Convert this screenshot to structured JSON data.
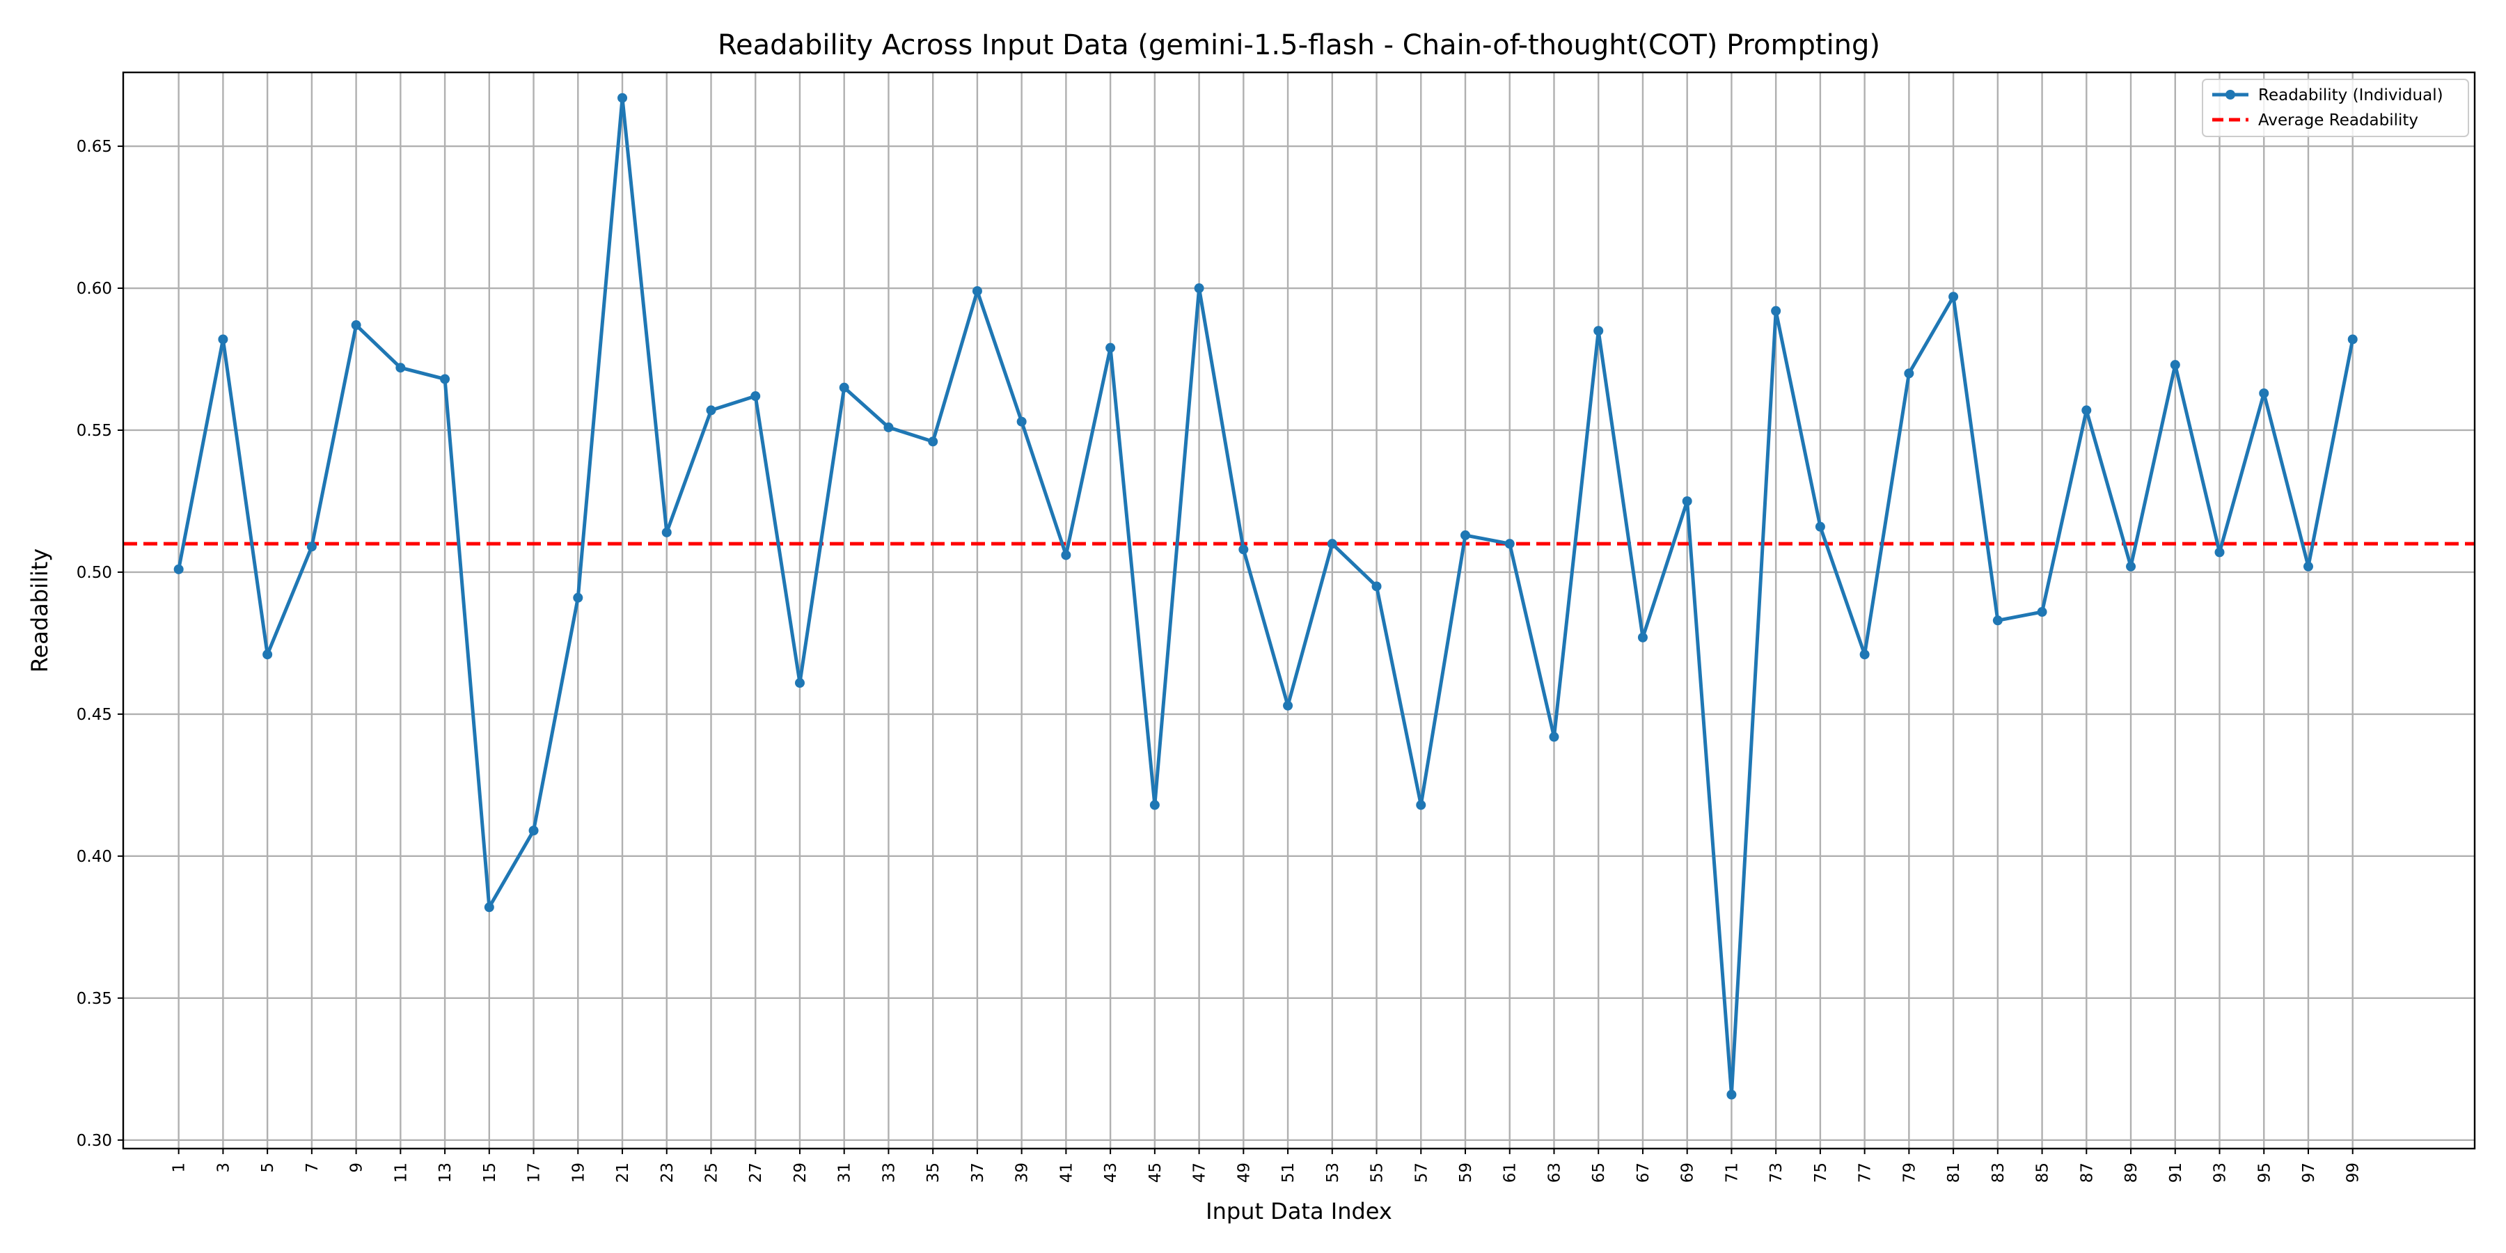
{
  "chart_data": {
    "type": "line",
    "title": "Readability Across Input Data (gemini-1.5-flash - Chain-of-thought(COT) Prompting)",
    "xlabel": "Input Data Index",
    "ylabel": "Readability",
    "ylim": [
      0.297,
      0.676
    ],
    "xlim": [
      -1.5,
      104.5
    ],
    "grid": true,
    "legend_position": "top-right",
    "x_ticks": [
      1,
      3,
      5,
      7,
      9,
      11,
      13,
      15,
      17,
      19,
      21,
      23,
      25,
      27,
      29,
      31,
      33,
      35,
      37,
      39,
      41,
      43,
      45,
      47,
      49,
      51,
      53,
      55,
      57,
      59,
      61,
      63,
      65,
      67,
      69,
      71,
      73,
      75,
      77,
      79,
      81,
      83,
      85,
      87,
      89,
      91,
      93,
      95,
      97,
      99
    ],
    "y_ticks": [
      0.3,
      0.35,
      0.4,
      0.45,
      0.5,
      0.55,
      0.6,
      0.65
    ],
    "y_tick_labels": [
      "0.30",
      "0.35",
      "0.40",
      "0.45",
      "0.50",
      "0.55",
      "0.60",
      "0.65"
    ],
    "series": [
      {
        "name": "Readability (Individual)",
        "color": "#1f77b4",
        "style": "solid-marker",
        "x": [
          1,
          3,
          5,
          7,
          9,
          11,
          13,
          15,
          17,
          19,
          21,
          23,
          25,
          27,
          29,
          31,
          33,
          35,
          37,
          39,
          41,
          43,
          45,
          47,
          49,
          51,
          53,
          55,
          57,
          59,
          61,
          63,
          65,
          67,
          69,
          71,
          73,
          75,
          77,
          79,
          81,
          83,
          85,
          87,
          89,
          91,
          93,
          95,
          97,
          99
        ],
        "values": [
          0.501,
          0.582,
          0.471,
          0.509,
          0.587,
          0.572,
          0.568,
          0.382,
          0.409,
          0.491,
          0.667,
          0.514,
          0.557,
          0.562,
          0.461,
          0.565,
          0.551,
          0.546,
          0.599,
          0.553,
          0.506,
          0.579,
          0.418,
          0.6,
          0.508,
          0.453,
          0.51,
          0.495,
          0.418,
          0.513,
          0.51,
          0.442,
          0.585,
          0.477,
          0.525,
          0.316,
          0.592,
          0.516,
          0.471,
          0.57,
          0.597,
          0.483,
          0.486,
          0.557,
          0.502,
          0.573,
          0.507,
          0.563,
          0.502,
          0.582
        ]
      },
      {
        "name": "Average Readability",
        "color": "#ff0000",
        "style": "dashed",
        "value": 0.51
      }
    ]
  }
}
